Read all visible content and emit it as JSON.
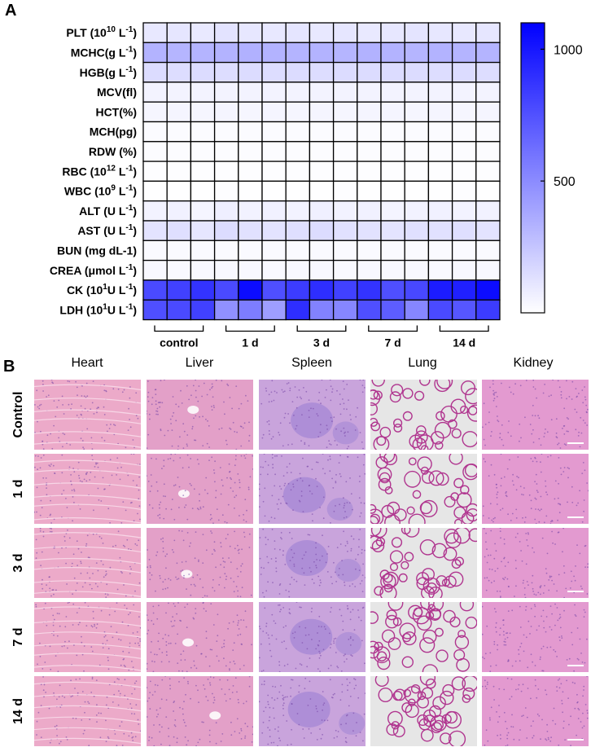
{
  "panel_a": {
    "letter": "A",
    "chart_data": {
      "type": "heatmap",
      "rows": [
        "PLT (10^10 L^-1)",
        "MCHC(g L^-1)",
        "HGB(g L^-1)",
        "MCV(fl)",
        "HCT(%)",
        "MCH(pg)",
        "RDW (%)",
        "RBC (10^12 L^-1)",
        "WBC (10^9 L^-1)",
        "ALT (U L^-1)",
        "AST (U L^-1)",
        "BUN (mg dL-1)",
        "CREA (μmol L^-1)",
        "CK (10^1U L^-1)",
        "LDH (10^1U L^-1)"
      ],
      "groups": [
        "control",
        "1 d",
        "3 d",
        "7 d",
        "14 d"
      ],
      "replicates_per_group": 3,
      "values": [
        [
          100,
          110,
          95,
          120,
          105,
          98,
          112,
          100,
          108,
          95,
          102,
          115,
          104,
          99,
          110
        ],
        [
          330,
          320,
          325,
          330,
          335,
          328,
          322,
          330,
          318,
          332,
          326,
          320,
          330,
          325,
          322
        ],
        [
          150,
          145,
          150,
          148,
          152,
          146,
          150,
          147,
          150,
          149,
          151,
          150,
          148,
          152,
          147
        ],
        [
          50,
          50,
          50,
          50,
          50,
          50,
          50,
          50,
          50,
          50,
          50,
          50,
          50,
          50,
          50
        ],
        [
          40,
          42,
          40,
          41,
          40,
          42,
          40,
          41,
          40,
          42,
          41,
          40,
          42,
          40,
          41
        ],
        [
          18,
          18,
          18,
          18,
          18,
          18,
          18,
          18,
          18,
          18,
          18,
          18,
          18,
          18,
          18
        ],
        [
          15,
          15,
          15,
          15,
          15,
          15,
          15,
          15,
          15,
          15,
          15,
          15,
          15,
          15,
          15
        ],
        [
          9,
          9,
          9,
          9,
          9,
          9,
          9,
          9,
          9,
          9,
          9,
          9,
          9,
          9,
          9
        ],
        [
          5,
          6,
          5,
          7,
          5,
          6,
          5,
          6,
          7,
          5,
          6,
          5,
          6,
          7,
          5
        ],
        [
          50,
          60,
          45,
          70,
          55,
          60,
          50,
          65,
          58,
          62,
          48,
          55,
          60,
          52,
          58
        ],
        [
          120,
          140,
          110,
          150,
          130,
          120,
          140,
          150,
          130,
          125,
          115,
          135,
          130,
          140,
          120
        ],
        [
          20,
          22,
          20,
          21,
          20,
          22,
          20,
          21,
          22,
          20,
          21,
          20,
          22,
          20,
          21
        ],
        [
          30,
          28,
          30,
          29,
          30,
          28,
          30,
          29,
          28,
          30,
          29,
          30,
          28,
          30,
          29
        ],
        [
          780,
          820,
          880,
          780,
          1050,
          760,
          840,
          900,
          820,
          880,
          760,
          790,
          980,
          960,
          1050
        ],
        [
          760,
          780,
          820,
          480,
          560,
          420,
          900,
          540,
          520,
          760,
          700,
          520,
          780,
          730,
          840
        ]
      ],
      "color_range": [
        0,
        1100
      ],
      "colorbar_ticks": [
        "500",
        "1000"
      ],
      "colors": {
        "low": "#ffffff",
        "high": "#0000ff"
      }
    }
  },
  "panel_b": {
    "letter": "B",
    "columns": [
      "Heart",
      "Liver",
      "Spleen",
      "Lung",
      "Kidney"
    ],
    "rows": [
      "Control",
      "1 d",
      "3 d",
      "7 d",
      "14 d"
    ]
  },
  "colors": {
    "tissue_pink": "#e8a6c6",
    "tissue_purple": "#a98bd6",
    "lung_background": "#e6e6e6"
  }
}
